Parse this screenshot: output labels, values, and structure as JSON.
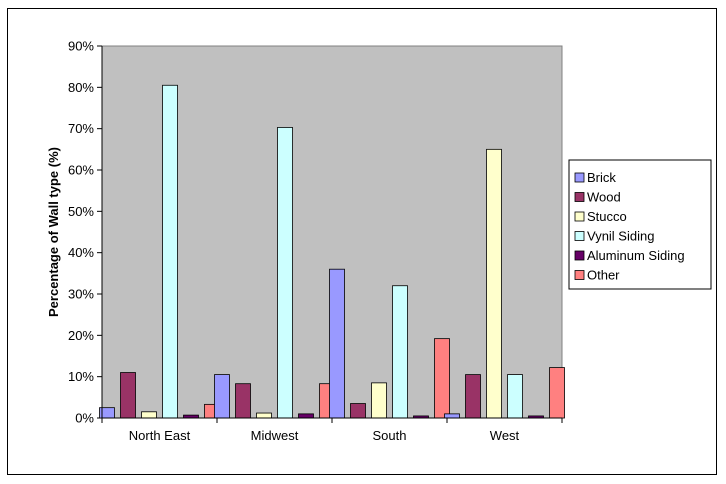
{
  "chart_data": {
    "type": "bar",
    "title": "",
    "xlabel": "",
    "ylabel": "Percentage of Wall type (%)",
    "categories": [
      "North East",
      "Midwest",
      "South",
      "West"
    ],
    "ylim": [
      0,
      90
    ],
    "yticks": [
      "0%",
      "10%",
      "20%",
      "30%",
      "40%",
      "50%",
      "60%",
      "70%",
      "80%",
      "90%"
    ],
    "grid": false,
    "legend_position": "right",
    "plot_background": "#c0c0c0",
    "series": [
      {
        "name": "Brick",
        "color": "#9999ff",
        "values": [
          2.5,
          10.5,
          36,
          1
        ]
      },
      {
        "name": "Wood",
        "color": "#993366",
        "values": [
          11,
          8.3,
          3.5,
          10.5
        ]
      },
      {
        "name": "Stucco",
        "color": "#ffffcc",
        "values": [
          1.5,
          1.2,
          8.5,
          65
        ]
      },
      {
        "name": "Vynil Siding",
        "color": "#ccffff",
        "values": [
          80.5,
          70.3,
          32,
          10.5
        ]
      },
      {
        "name": "Aluminum Siding",
        "color": "#660066",
        "values": [
          0.7,
          1,
          0.5,
          0.5
        ]
      },
      {
        "name": "Other",
        "color": "#ff8080",
        "values": [
          3.3,
          8.3,
          19.2,
          12.2
        ]
      }
    ]
  }
}
